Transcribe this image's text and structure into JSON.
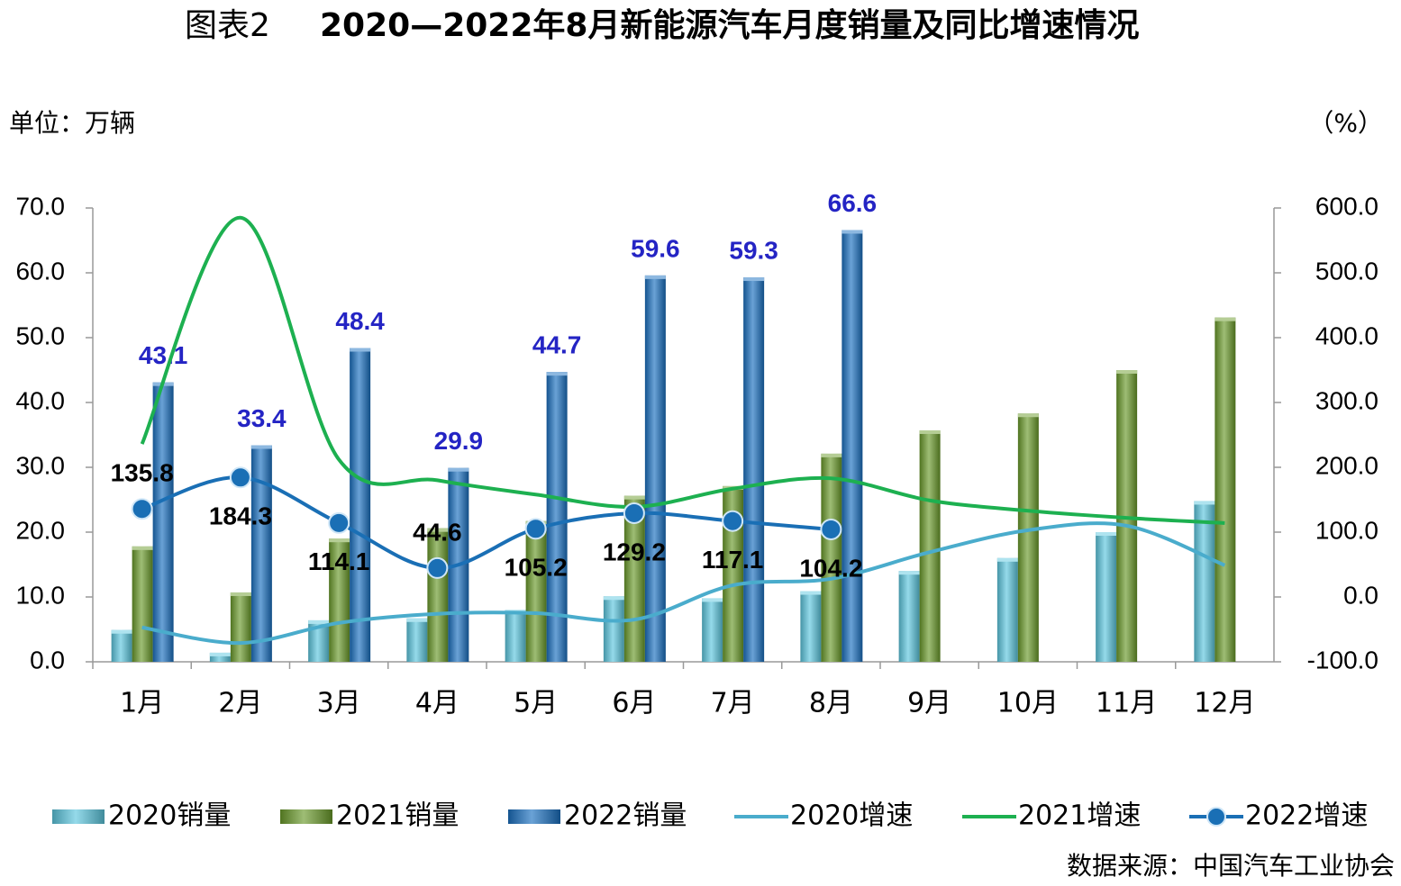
{
  "chart_data": {
    "type": "bar_line",
    "figure_label": "图表2",
    "title": "2020—2022年8月新能源汽车月度销量及同比增速情况",
    "y_unit": "单位：万辆",
    "y2_unit": "（%）",
    "source": "数据来源：中国汽车工业协会",
    "categories": [
      "1月",
      "2月",
      "3月",
      "4月",
      "5月",
      "6月",
      "7月",
      "8月",
      "9月",
      "10月",
      "11月",
      "12月"
    ],
    "ylim": [
      0,
      70
    ],
    "yticks": [
      {
        "value": 0,
        "label": "0.0"
      },
      {
        "value": 10,
        "label": "10.0"
      },
      {
        "value": 20,
        "label": "20.0"
      },
      {
        "value": 30,
        "label": "30.0"
      },
      {
        "value": 40,
        "label": "40.0"
      },
      {
        "value": 50,
        "label": "50.0"
      },
      {
        "value": 60,
        "label": "60.0"
      },
      {
        "value": 70,
        "label": "70.0"
      }
    ],
    "y2lim": [
      -100,
      600
    ],
    "y2ticks": [
      {
        "value": -100,
        "label": "-100.0"
      },
      {
        "value": 0,
        "label": "0.0"
      },
      {
        "value": 100,
        "label": "100.0"
      },
      {
        "value": 200,
        "label": "200.0"
      },
      {
        "value": 300,
        "label": "300.0"
      },
      {
        "value": 400,
        "label": "400.0"
      },
      {
        "value": 500,
        "label": "500.0"
      },
      {
        "value": 600,
        "label": "600.0"
      }
    ],
    "legend": "bottom",
    "series": [
      {
        "name": "2020销量",
        "type": "bar",
        "color": "#5cc6de",
        "values": [
          4.9,
          1.4,
          6.4,
          6.7,
          8.0,
          10.1,
          9.8,
          10.9,
          14.0,
          16.0,
          20.0,
          24.8
        ]
      },
      {
        "name": "2021销量",
        "type": "bar",
        "color": "#6a9a2a",
        "values": [
          17.8,
          10.7,
          19.0,
          20.6,
          21.7,
          25.6,
          27.1,
          32.1,
          35.7,
          38.3,
          45.0,
          53.1
        ]
      },
      {
        "name": "2022销量",
        "type": "bar",
        "color": "#1a70c0",
        "values": [
          43.1,
          33.4,
          48.4,
          29.9,
          44.7,
          59.6,
          59.3,
          66.6,
          null,
          null,
          null,
          null
        ],
        "show_labels": true,
        "label_color": "#2424c4"
      },
      {
        "name": "2020增速",
        "type": "line",
        "axis": "y2",
        "color": "#4aaccc",
        "values": [
          -47,
          -71,
          -40,
          -26,
          -25,
          -35,
          18,
          28,
          69,
          103,
          110,
          49
        ]
      },
      {
        "name": "2021增速",
        "type": "line",
        "axis": "y2",
        "color": "#1db050",
        "values": [
          236,
          585,
          212,
          180,
          158,
          139,
          167,
          183,
          149,
          133,
          122,
          114
        ]
      },
      {
        "name": "2022增速",
        "type": "line",
        "axis": "y2",
        "color": "#1a6fb5",
        "marker": true,
        "show_labels": true,
        "label_color": "#000",
        "values": [
          135.8,
          184.3,
          114.1,
          44.6,
          105.2,
          129.2,
          117.1,
          104.2,
          null,
          null,
          null,
          null
        ]
      }
    ]
  }
}
